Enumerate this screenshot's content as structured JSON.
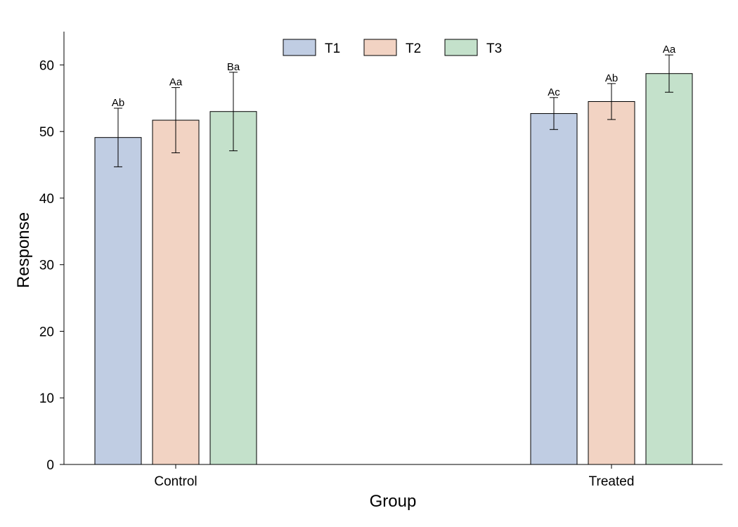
{
  "chart_data": {
    "type": "bar",
    "categories": [
      "Control",
      "Treated"
    ],
    "series": [
      {
        "name": "T1",
        "color": "#c0cde3",
        "values": [
          49.1,
          52.7
        ],
        "errors": [
          4.4,
          2.4
        ],
        "labels": [
          "Ab",
          "Ac"
        ]
      },
      {
        "name": "T2",
        "color": "#f2d3c3",
        "values": [
          51.7,
          54.5
        ],
        "errors": [
          4.9,
          2.7
        ],
        "labels": [
          "Aa",
          "Ab"
        ]
      },
      {
        "name": "T3",
        "color": "#c4e1cb",
        "values": [
          53.0,
          58.7
        ],
        "errors": [
          5.9,
          2.8
        ],
        "labels": [
          "Ba",
          "Aa"
        ]
      }
    ],
    "xlabel": "Group",
    "ylabel": "Response",
    "ylim": [
      0,
      65
    ],
    "yticks": [
      0,
      10,
      20,
      30,
      40,
      50,
      60
    ],
    "legend_position": "top-center",
    "grid": false
  }
}
